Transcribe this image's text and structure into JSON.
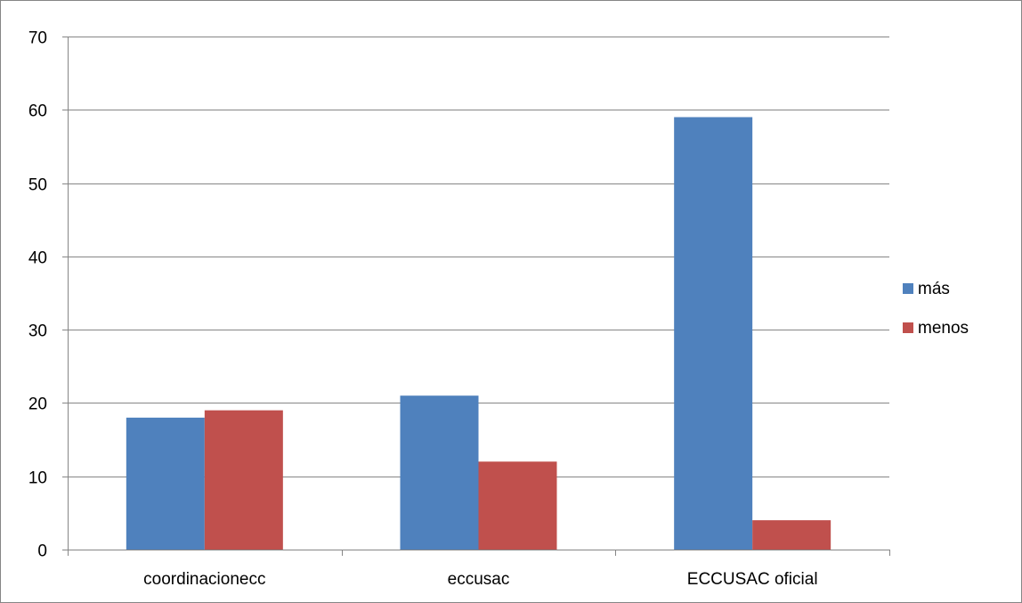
{
  "chart_data": {
    "type": "bar",
    "title": "",
    "xlabel": "",
    "ylabel": "",
    "categories": [
      "coordinacionecc",
      "eccusac",
      "ECCUSAC oficial"
    ],
    "series": [
      {
        "name": "más",
        "values": [
          18,
          21,
          59
        ],
        "color": "#4F81BD"
      },
      {
        "name": "menos",
        "values": [
          19,
          12,
          4
        ],
        "color": "#C0504D"
      }
    ],
    "ylim": [
      0,
      70
    ],
    "yticks": [
      0,
      10,
      20,
      30,
      40,
      50,
      60,
      70
    ],
    "grid": true,
    "legend_position": "right"
  }
}
